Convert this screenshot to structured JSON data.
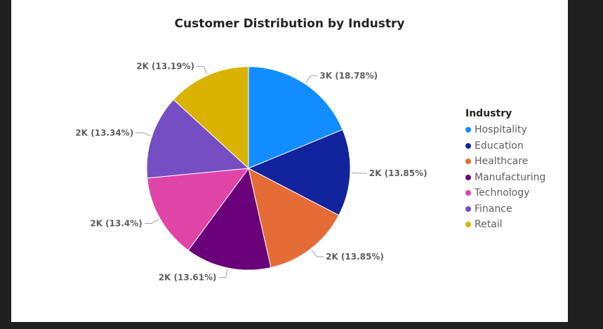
{
  "chart_data": {
    "type": "pie",
    "title": "Customer Distribution by Industry",
    "legend_title": "Industry",
    "legend_position": "right",
    "start_angle_deg": 0,
    "slices": [
      {
        "name": "Hospitality",
        "percent": 18.78,
        "label": "3K (18.78%)",
        "color": "#118DFF"
      },
      {
        "name": "Education",
        "percent": 13.85,
        "label": "2K (13.85%)",
        "color": "#12239E"
      },
      {
        "name": "Healthcare",
        "percent": 13.85,
        "label": "2K (13.85%)",
        "color": "#E66C37"
      },
      {
        "name": "Manufacturing",
        "percent": 13.61,
        "label": "2K (13.61%)",
        "color": "#6B007B"
      },
      {
        "name": "Technology",
        "percent": 13.4,
        "label": "2K (13.4%)",
        "color": "#E044A7"
      },
      {
        "name": "Finance",
        "percent": 13.34,
        "label": "2K (13.34%)",
        "color": "#744EC2"
      },
      {
        "name": "Retail",
        "percent": 13.19,
        "label": "2K (13.19%)",
        "color": "#D9B300"
      }
    ]
  }
}
